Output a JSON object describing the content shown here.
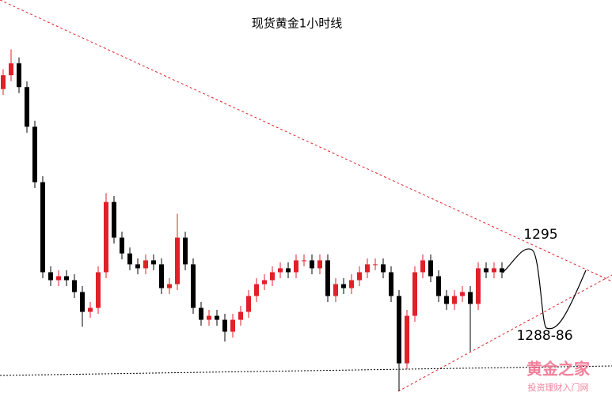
{
  "chart_data": {
    "type": "candlestick",
    "title": "现货黄金1小时线",
    "annotations": [
      "1295",
      "1288-86"
    ],
    "watermark": {
      "title": "黄金之家",
      "subtitle": "投资理财入门网"
    },
    "up_color": "#e0202a",
    "down_color": "#000000",
    "ylim": [
      1280,
      1320
    ],
    "open": [
      1311.0,
      1312.4,
      1313.6,
      1311.2,
      1307.2,
      1301.6,
      1292.5,
      1291.7,
      1292.1,
      1291.7,
      1290.5,
      1288.5,
      1288.9,
      1292.5,
      1299.6,
      1296.0,
      1294.4,
      1293.3,
      1292.9,
      1293.7,
      1293.3,
      1290.9,
      1291.3,
      1296.0,
      1293.3,
      1288.9,
      1287.7,
      1288.1,
      1287.7,
      1286.5,
      1287.7,
      1288.5,
      1290.1,
      1291.3,
      1291.7,
      1292.5,
      1292.9,
      1292.5,
      1293.7,
      1293.7,
      1292.9,
      1293.7,
      1290.1,
      1291.3,
      1290.9,
      1291.7,
      1292.5,
      1293.3,
      1293.3,
      1292.5,
      1290.1,
      1283.3,
      1288.1,
      1292.5,
      1293.7,
      1292.1,
      1290.1,
      1289.3,
      1290.1,
      1290.5,
      1289.3,
      1292.9,
      1292.5,
      1292.9
    ],
    "high": [
      1313.0,
      1315.0,
      1314.2,
      1311.8,
      1307.8,
      1302.2,
      1293.1,
      1292.7,
      1292.7,
      1292.3,
      1291.1,
      1289.5,
      1293.1,
      1300.5,
      1300.2,
      1296.6,
      1295.0,
      1293.9,
      1294.3,
      1294.3,
      1293.9,
      1291.9,
      1298.4,
      1296.6,
      1293.9,
      1289.5,
      1288.7,
      1288.7,
      1288.3,
      1288.3,
      1289.1,
      1290.7,
      1291.9,
      1292.3,
      1293.1,
      1293.5,
      1293.5,
      1294.3,
      1294.3,
      1294.3,
      1294.3,
      1294.3,
      1291.9,
      1291.9,
      1292.3,
      1293.1,
      1293.9,
      1293.9,
      1293.9,
      1293.1,
      1290.7,
      1288.7,
      1293.1,
      1294.3,
      1294.3,
      1292.7,
      1290.7,
      1290.7,
      1291.1,
      1291.1,
      1293.5,
      1293.5,
      1293.5,
      1293.5
    ],
    "low": [
      1310.4,
      1311.8,
      1310.6,
      1306.6,
      1301.0,
      1291.9,
      1291.1,
      1291.1,
      1291.1,
      1289.9,
      1287.0,
      1287.9,
      1288.3,
      1291.9,
      1295.4,
      1293.8,
      1292.7,
      1292.3,
      1292.3,
      1292.7,
      1290.3,
      1290.3,
      1290.7,
      1292.7,
      1288.3,
      1287.1,
      1287.1,
      1287.1,
      1285.5,
      1285.9,
      1287.1,
      1287.9,
      1289.5,
      1290.7,
      1291.1,
      1291.9,
      1291.9,
      1291.9,
      1293.1,
      1292.3,
      1292.3,
      1289.5,
      1289.5,
      1290.3,
      1290.3,
      1291.1,
      1291.9,
      1292.7,
      1291.9,
      1289.5,
      1280.5,
      1282.7,
      1287.5,
      1291.9,
      1291.5,
      1289.5,
      1288.7,
      1288.7,
      1289.5,
      1284.5,
      1288.7,
      1291.9,
      1291.9,
      1291.9
    ],
    "close": [
      1312.4,
      1313.6,
      1311.2,
      1307.2,
      1301.6,
      1292.5,
      1291.7,
      1292.1,
      1291.7,
      1290.5,
      1288.5,
      1288.9,
      1292.5,
      1299.6,
      1296.0,
      1294.4,
      1293.3,
      1292.9,
      1293.7,
      1293.3,
      1290.9,
      1291.3,
      1296.0,
      1293.3,
      1288.9,
      1287.7,
      1288.1,
      1287.7,
      1286.5,
      1287.7,
      1288.5,
      1290.1,
      1291.3,
      1291.7,
      1292.5,
      1292.9,
      1292.5,
      1293.7,
      1293.7,
      1292.9,
      1293.7,
      1290.1,
      1291.3,
      1290.9,
      1291.7,
      1292.5,
      1293.3,
      1293.3,
      1292.5,
      1290.1,
      1283.3,
      1288.1,
      1292.5,
      1293.7,
      1292.1,
      1290.1,
      1289.3,
      1290.1,
      1290.5,
      1289.3,
      1292.9,
      1292.5,
      1292.9,
      1292.5
    ]
  }
}
